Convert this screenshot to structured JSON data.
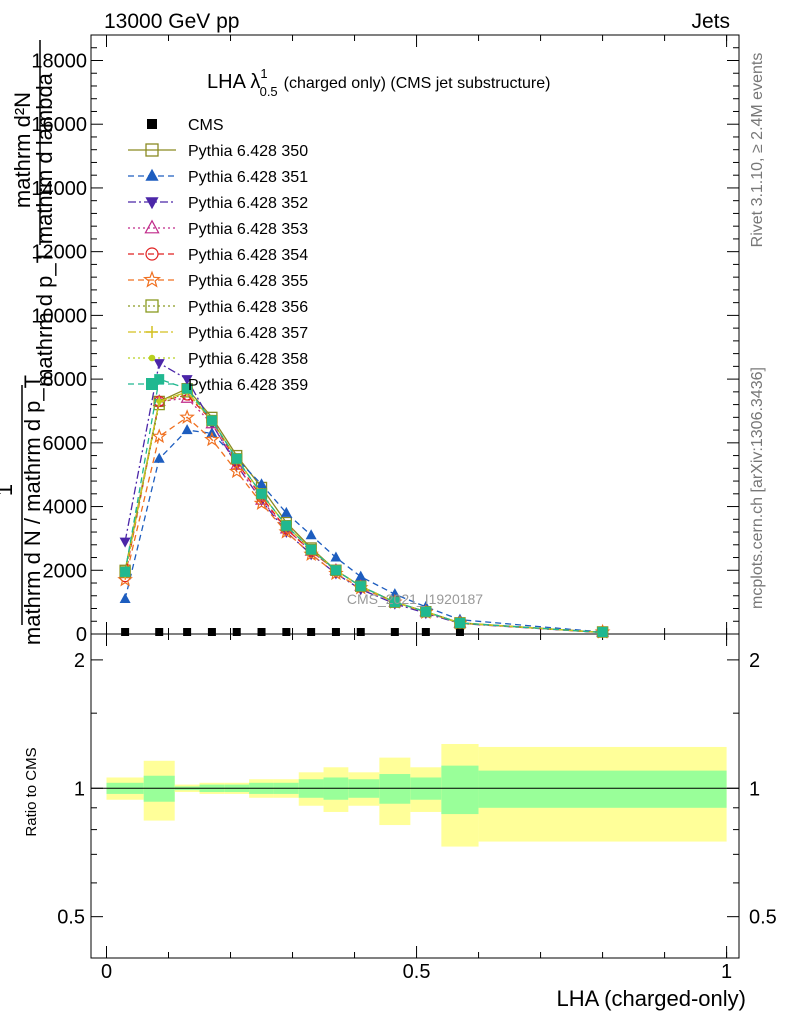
{
  "header": {
    "left": "13000 GeV pp",
    "right": "Jets"
  },
  "side": {
    "rivet": "Rivet 3.1.10, ≥ 2.4M events",
    "mcplots": "mcplots.cern.ch [arXiv:1306.3436]"
  },
  "main_plot": {
    "title_main": "LHA λ",
    "title_sup": "1",
    "title_sub": "0.5",
    "title_rest": "(charged only) (CMS jet substructure)",
    "ylabel_top": "mathrm d²N",
    "ylabel_mid": "mathrm d p_T mathrm d lambda",
    "ylabel_one": "1",
    "ylabel_bottom": "mathrm d N / mathrm d p_T",
    "watermark": "CMS_2021_I1920187",
    "ylim": [
      0,
      18800
    ],
    "yticks": [
      {
        "v": 0,
        "label": "0"
      },
      {
        "v": 2000,
        "label": "2000"
      },
      {
        "v": 4000,
        "label": "4000"
      },
      {
        "v": 6000,
        "label": "6000"
      },
      {
        "v": 8000,
        "label": "8000"
      },
      {
        "v": 10000,
        "label": "10000"
      },
      {
        "v": 12000,
        "label": "12000"
      },
      {
        "v": 14000,
        "label": "14000"
      },
      {
        "v": 16000,
        "label": "16000"
      },
      {
        "v": 18000,
        "label": "18000"
      }
    ]
  },
  "ratio_plot": {
    "ylabel": "Ratio to CMS",
    "yticks": [
      {
        "v": 0.5,
        "label": "0.5"
      },
      {
        "v": 1,
        "label": "1"
      },
      {
        "v": 2,
        "label": "2"
      }
    ],
    "ylim": [
      0.4,
      2.3
    ],
    "bands": [
      {
        "x0": 0.0,
        "x1": 0.06,
        "inner": 0.03,
        "outer": 0.06
      },
      {
        "x0": 0.06,
        "x1": 0.11,
        "inner": 0.07,
        "outer": 0.16
      },
      {
        "x0": 0.11,
        "x1": 0.15,
        "inner": 0.01,
        "outer": 0.02
      },
      {
        "x0": 0.15,
        "x1": 0.19,
        "inner": 0.02,
        "outer": 0.03
      },
      {
        "x0": 0.19,
        "x1": 0.23,
        "inner": 0.02,
        "outer": 0.03
      },
      {
        "x0": 0.23,
        "x1": 0.27,
        "inner": 0.03,
        "outer": 0.05
      },
      {
        "x0": 0.27,
        "x1": 0.31,
        "inner": 0.03,
        "outer": 0.05
      },
      {
        "x0": 0.31,
        "x1": 0.35,
        "inner": 0.05,
        "outer": 0.09
      },
      {
        "x0": 0.35,
        "x1": 0.39,
        "inner": 0.06,
        "outer": 0.12
      },
      {
        "x0": 0.39,
        "x1": 0.44,
        "inner": 0.05,
        "outer": 0.09
      },
      {
        "x0": 0.44,
        "x1": 0.49,
        "inner": 0.08,
        "outer": 0.18
      },
      {
        "x0": 0.49,
        "x1": 0.54,
        "inner": 0.06,
        "outer": 0.12
      },
      {
        "x0": 0.54,
        "x1": 0.6,
        "inner": 0.13,
        "outer": 0.27
      },
      {
        "x0": 0.6,
        "x1": 1.0,
        "inner": 0.1,
        "outer": 0.25
      }
    ]
  },
  "xaxis": {
    "label": "LHA (charged-only)",
    "xlim": [
      -0.025,
      1.02
    ],
    "ticks": [
      {
        "v": 0,
        "label": "0"
      },
      {
        "v": 0.5,
        "label": "0.5"
      },
      {
        "v": 1,
        "label": "1"
      }
    ]
  },
  "chart_data": {
    "type": "line",
    "x": [
      0.03,
      0.085,
      0.13,
      0.17,
      0.21,
      0.25,
      0.29,
      0.33,
      0.37,
      0.41,
      0.465,
      0.515,
      0.57,
      0.8
    ],
    "series": [
      {
        "name": "CMS",
        "color": "#000000",
        "marker": "square-filled",
        "dash": "none",
        "values": [
          20,
          25,
          30,
          30,
          30,
          30,
          25,
          25,
          20,
          20,
          15,
          15,
          10,
          5
        ]
      },
      {
        "name": "Pythia 6.428 350",
        "color": "#8a8a22",
        "marker": "square-open",
        "dash": "solid",
        "values": [
          2000,
          7300,
          7700,
          6800,
          5600,
          4600,
          3500,
          2700,
          2000,
          1500,
          1000,
          700,
          350,
          50
        ]
      },
      {
        "name": "Pythia 6.428 351",
        "color": "#1d5dbf",
        "marker": "triangle-up-filled",
        "dash": "dashed",
        "values": [
          1100,
          5500,
          6400,
          6300,
          5500,
          4700,
          3800,
          3100,
          2400,
          1800,
          1250,
          850,
          450,
          60
        ]
      },
      {
        "name": "Pythia 6.428 352",
        "color": "#4b26a8",
        "marker": "triangle-down-filled",
        "dash": "dashdot",
        "values": [
          2900,
          8500,
          8000,
          6600,
          5300,
          4200,
          3200,
          2500,
          1900,
          1400,
          950,
          650,
          330,
          45
        ]
      },
      {
        "name": "Pythia 6.428 353",
        "color": "#c02a8a",
        "marker": "triangle-up-open",
        "dash": "dotted",
        "values": [
          1900,
          7300,
          7400,
          6600,
          5300,
          4200,
          3300,
          2600,
          2000,
          1500,
          1000,
          700,
          340,
          45
        ]
      },
      {
        "name": "Pythia 6.428 354",
        "color": "#e02020",
        "marker": "circle-open",
        "dash": "dashed",
        "values": [
          1800,
          7300,
          7500,
          6700,
          5400,
          4300,
          3300,
          2600,
          2000,
          1500,
          1000,
          700,
          340,
          45
        ]
      },
      {
        "name": "Pythia 6.428 355",
        "color": "#f07020",
        "marker": "star-open",
        "dash": "dashed",
        "values": [
          1700,
          6200,
          6800,
          6100,
          5100,
          4100,
          3200,
          2500,
          1900,
          1450,
          1000,
          680,
          340,
          45
        ]
      },
      {
        "name": "Pythia 6.428 356",
        "color": "#8a9a20",
        "marker": "square-open",
        "dash": "dotted",
        "values": [
          1950,
          7200,
          7600,
          6700,
          5500,
          4400,
          3400,
          2650,
          2000,
          1500,
          1000,
          700,
          345,
          48
        ]
      },
      {
        "name": "Pythia 6.428 357",
        "color": "#d4c020",
        "marker": "cross",
        "dash": "dashdot",
        "values": [
          1900,
          7300,
          7600,
          6700,
          5500,
          4400,
          3400,
          2650,
          2000,
          1500,
          1000,
          700,
          345,
          48
        ]
      },
      {
        "name": "Pythia 6.428 358",
        "color": "#b8d020",
        "marker": "dot",
        "dash": "dotted",
        "values": [
          1900,
          7300,
          7600,
          6700,
          5500,
          4400,
          3400,
          2650,
          2000,
          1500,
          1000,
          700,
          345,
          48
        ]
      },
      {
        "name": "Pythia 6.428 359",
        "color": "#20b890",
        "marker": "square-filled",
        "dash": "dashed",
        "values": [
          1950,
          8000,
          7700,
          6700,
          5500,
          4400,
          3400,
          2650,
          2000,
          1500,
          1000,
          700,
          345,
          48
        ]
      }
    ]
  }
}
